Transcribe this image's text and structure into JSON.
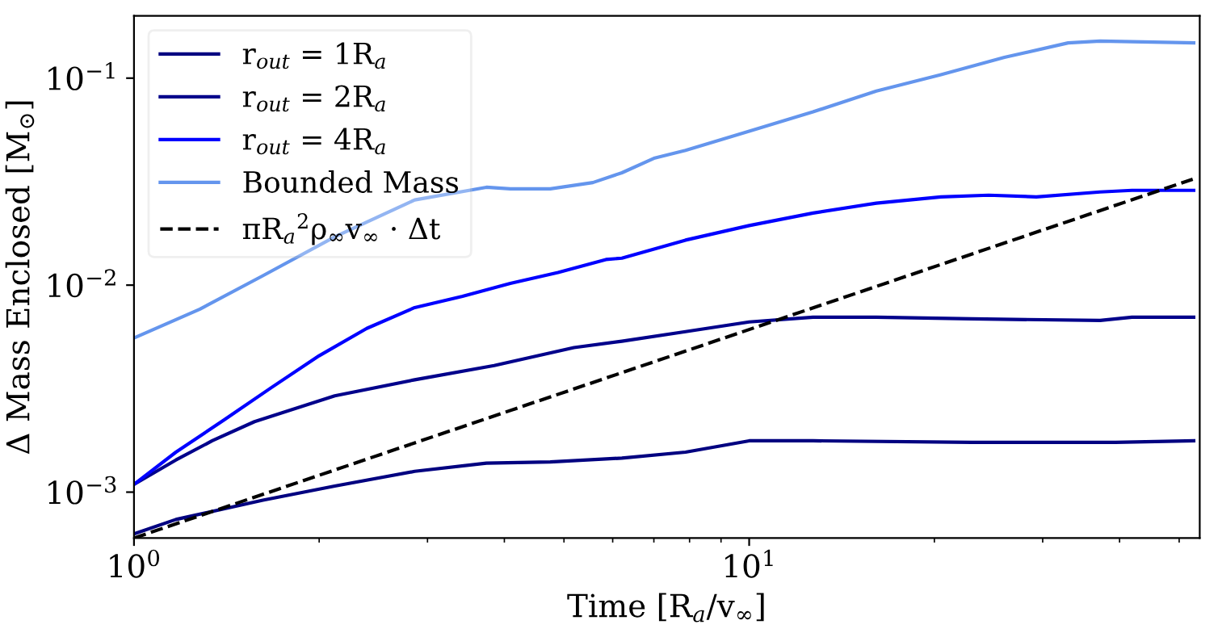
{
  "chart_data": {
    "type": "line",
    "xlabel": "Time [R$_{a}$/v$_{∞}$]",
    "ylabel": "Δ Mass Enclosed [M$_{⊙}$]",
    "log": "xy",
    "legend": "top left",
    "grid": false,
    "line_style": "solid",
    "marker": "none",
    "xlim": [
      1,
      54
    ],
    "ylim": [
      0.0006,
      0.2
    ],
    "xticks": [
      {
        "value": 1,
        "label": "10$^{0}$"
      },
      {
        "value": 2,
        "label": null
      },
      {
        "value": 3,
        "label": null
      },
      {
        "value": 4,
        "label": null
      },
      {
        "value": 5,
        "label": null
      },
      {
        "value": 6,
        "label": null
      },
      {
        "value": 7,
        "label": null
      },
      {
        "value": 8,
        "label": null
      },
      {
        "value": 9,
        "label": null
      },
      {
        "value": 10,
        "label": "10$^{1}$"
      },
      {
        "value": 20,
        "label": null
      },
      {
        "value": 30,
        "label": null
      },
      {
        "value": 40,
        "label": null
      },
      {
        "value": 50,
        "label": null
      }
    ],
    "yticks": [
      {
        "value": 0.001,
        "label": "10$^{−3}$"
      },
      {
        "value": 0.01,
        "label": "10$^{−2}$"
      },
      {
        "value": 0.1,
        "label": "10$^{−1}$"
      }
    ],
    "series": [
      {
        "name": "r$_{out}$ = 1R$_{a}$",
        "color": "#000080",
        "x": [
          1,
          1.17,
          1.62,
          2.12,
          2.86,
          3.74,
          4.75,
          6.21,
          7.88,
          10,
          12.7,
          23.0,
          39.4,
          52.8
        ],
        "values": [
          0.000628,
          0.000738,
          0.000914,
          0.00107,
          0.00126,
          0.00138,
          0.0014,
          0.00146,
          0.00156,
          0.00177,
          0.00177,
          0.00174,
          0.00174,
          0.00177
        ]
      },
      {
        "name": "r$_{out}$ = 2R$_{a}$",
        "color": "#00008b",
        "x": [
          1,
          1.17,
          1.34,
          1.57,
          2.12,
          2.86,
          3.85,
          5.19,
          6.21,
          7.88,
          10,
          12.7,
          16.1,
          23.0,
          37.2,
          41.9,
          52.8
        ],
        "values": [
          0.00109,
          0.00143,
          0.00177,
          0.00219,
          0.00292,
          0.00349,
          0.00409,
          0.00499,
          0.00536,
          0.00596,
          0.00664,
          0.007,
          0.007,
          0.00687,
          0.00675,
          0.007,
          0.007
        ]
      },
      {
        "name": "r$_{out}$ = 4R$_{a}$",
        "color": "#0000ff",
        "x": [
          1,
          1.17,
          1.4,
          1.67,
          2.0,
          2.39,
          2.86,
          3.42,
          4.09,
          4.89,
          5.85,
          6.21,
          7.88,
          10,
          12.7,
          16.1,
          20.5,
          24.5,
          29.3,
          37.2,
          41.9,
          52.8
        ],
        "values": [
          0.00109,
          0.00156,
          0.00223,
          0.00319,
          0.00456,
          0.00618,
          0.00779,
          0.00883,
          0.0102,
          0.0115,
          0.0133,
          0.0135,
          0.0165,
          0.0194,
          0.0223,
          0.0249,
          0.0267,
          0.0272,
          0.0267,
          0.0282,
          0.0287,
          0.0287
        ]
      },
      {
        "name": "Bounded Mass",
        "color": "#6495ed",
        "x": [
          1,
          1.28,
          1.62,
          2.12,
          2.86,
          3.74,
          4.09,
          4.75,
          5.57,
          6.21,
          7.0,
          7.88,
          10,
          12.7,
          16.1,
          20.5,
          26.0,
          33.0,
          37.2,
          52.8
        ],
        "values": [
          0.00555,
          0.00766,
          0.0111,
          0.0171,
          0.0258,
          0.0297,
          0.0292,
          0.0292,
          0.0313,
          0.0349,
          0.041,
          0.0448,
          0.0554,
          0.0687,
          0.0867,
          0.104,
          0.126,
          0.148,
          0.151,
          0.148
        ]
      },
      {
        "name": "πR$_{a}$$^{2}$ρ$_{∞}$v$_{∞}$ · Δt",
        "color": "#000000",
        "line_style": "dashed",
        "x": [
          1,
          52.6
        ],
        "values": [
          0.0006,
          0.0325
        ]
      }
    ]
  }
}
